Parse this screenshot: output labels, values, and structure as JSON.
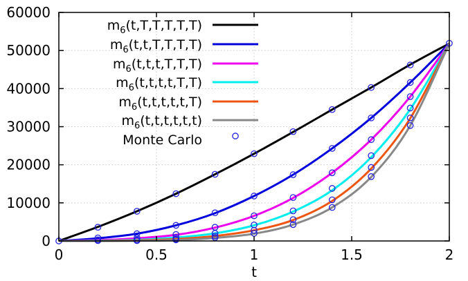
{
  "chart_data": {
    "type": "line",
    "title": "",
    "xlabel": "t",
    "ylabel": "",
    "xlim": [
      0,
      2
    ],
    "ylim": [
      0,
      60000
    ],
    "grid": true,
    "legend_position": "top-left",
    "x_ticks": [
      {
        "value": 0,
        "label": "0"
      },
      {
        "value": 0.5,
        "label": "0.5"
      },
      {
        "value": 1,
        "label": "1"
      },
      {
        "value": 1.5,
        "label": "1.5"
      },
      {
        "value": 2,
        "label": "2"
      }
    ],
    "y_ticks": [
      {
        "value": 0,
        "label": "0"
      },
      {
        "value": 10000,
        "label": "10000"
      },
      {
        "value": 20000,
        "label": "20000"
      },
      {
        "value": 30000,
        "label": "30000"
      },
      {
        "value": 40000,
        "label": "40000"
      },
      {
        "value": 50000,
        "label": "50000"
      },
      {
        "value": 60000,
        "label": "60000"
      }
    ],
    "series": [
      {
        "name": "m6(t,T,T,T,T,T)",
        "name_base": "m",
        "name_sub": "6",
        "name_args": "(t,T,T,T,T,T)",
        "color": "#000000",
        "x": [
          0,
          0.2,
          0.4,
          0.6,
          0.8,
          1.0,
          1.2,
          1.4,
          1.6,
          1.8,
          2.0
        ],
        "values": [
          0,
          3700,
          7800,
          12400,
          17500,
          22900,
          28600,
          34500,
          40300,
          46300,
          51840
        ]
      },
      {
        "name": "m6(t,t,T,T,T,T)",
        "name_base": "m",
        "name_sub": "6",
        "name_args": "(t,t,T,T,T,T)",
        "color": "#0000dd",
        "x": [
          0,
          0.2,
          0.4,
          0.6,
          0.8,
          1.0,
          1.2,
          1.4,
          1.6,
          1.8,
          2.0
        ],
        "values": [
          0,
          700,
          1900,
          4100,
          7300,
          11800,
          17400,
          24300,
          32300,
          41600,
          51840
        ]
      },
      {
        "name": "m6(t,t,t,T,T,T)",
        "name_base": "m",
        "name_sub": "6",
        "name_args": "(t,t,t,T,T,T)",
        "color": "#ee00ee",
        "x": [
          0,
          0.2,
          0.4,
          0.6,
          0.8,
          1.0,
          1.2,
          1.4,
          1.6,
          1.8,
          2.0
        ],
        "values": [
          0,
          200,
          700,
          1600,
          3500,
          6600,
          11300,
          17900,
          26600,
          37900,
          51840
        ]
      },
      {
        "name": "m6(t,t,t,t,T,T)",
        "name_base": "m",
        "name_sub": "6",
        "name_args": "(t,t,t,t,T,T)",
        "color": "#00eeee",
        "x": [
          0,
          0.2,
          0.4,
          0.6,
          0.8,
          1.0,
          1.2,
          1.4,
          1.6,
          1.8,
          2.0
        ],
        "values": [
          0,
          60,
          300,
          900,
          2000,
          4100,
          7700,
          13300,
          22000,
          34600,
          51840
        ]
      },
      {
        "name": "m6(t,t,t,t,t,T)",
        "name_base": "m",
        "name_sub": "6",
        "name_args": "(t,t,t,t,t,T)",
        "color": "#ee5511",
        "x": [
          0,
          0.2,
          0.4,
          0.6,
          0.8,
          1.0,
          1.2,
          1.4,
          1.6,
          1.8,
          2.0
        ],
        "values": [
          0,
          20,
          150,
          500,
          1300,
          2800,
          5500,
          10500,
          19000,
          32200,
          51840
        ]
      },
      {
        "name": "m6(t,t,t,t,t,t)",
        "name_base": "m",
        "name_sub": "6",
        "name_args": "(t,t,t,t,t,t)",
        "color": "#888888",
        "x": [
          0,
          0.2,
          0.4,
          0.6,
          0.8,
          1.0,
          1.2,
          1.4,
          1.6,
          1.8,
          2.0
        ],
        "values": [
          0,
          5,
          50,
          250,
          800,
          1900,
          4300,
          8800,
          16800,
          30300,
          51840
        ]
      }
    ],
    "monte_carlo": {
      "name": "Monte Carlo",
      "color": "#2222dd",
      "points": [
        [
          0,
          0
        ],
        [
          0.2,
          3600
        ],
        [
          0.2,
          800
        ],
        [
          0.2,
          300
        ],
        [
          0.2,
          100
        ],
        [
          0.4,
          7800
        ],
        [
          0.4,
          1900
        ],
        [
          0.4,
          800
        ],
        [
          0.4,
          300
        ],
        [
          0.4,
          100
        ],
        [
          0.6,
          12400
        ],
        [
          0.6,
          4100
        ],
        [
          0.6,
          1700
        ],
        [
          0.6,
          900
        ],
        [
          0.6,
          500
        ],
        [
          0.6,
          300
        ],
        [
          0.8,
          17500
        ],
        [
          0.8,
          7400
        ],
        [
          0.8,
          3600
        ],
        [
          0.8,
          2000
        ],
        [
          0.8,
          1300
        ],
        [
          0.8,
          900
        ],
        [
          1.0,
          22900
        ],
        [
          1.0,
          11800
        ],
        [
          1.0,
          6600
        ],
        [
          1.0,
          4200
        ],
        [
          1.0,
          2800
        ],
        [
          1.0,
          2000
        ],
        [
          1.2,
          28700
        ],
        [
          1.2,
          17400
        ],
        [
          1.2,
          11400
        ],
        [
          1.2,
          7900
        ],
        [
          1.2,
          5600
        ],
        [
          1.2,
          4300
        ],
        [
          1.4,
          34500
        ],
        [
          1.4,
          24300
        ],
        [
          1.4,
          17900
        ],
        [
          1.4,
          13800
        ],
        [
          1.4,
          10800
        ],
        [
          1.4,
          8800
        ],
        [
          1.6,
          40300
        ],
        [
          1.6,
          32300
        ],
        [
          1.6,
          26600
        ],
        [
          1.6,
          22400
        ],
        [
          1.6,
          19300
        ],
        [
          1.6,
          16900
        ],
        [
          1.8,
          46200
        ],
        [
          1.8,
          41600
        ],
        [
          1.8,
          37900
        ],
        [
          1.8,
          34900
        ],
        [
          1.8,
          32300
        ],
        [
          1.8,
          30300
        ],
        [
          2.0,
          51900
        ]
      ]
    }
  }
}
